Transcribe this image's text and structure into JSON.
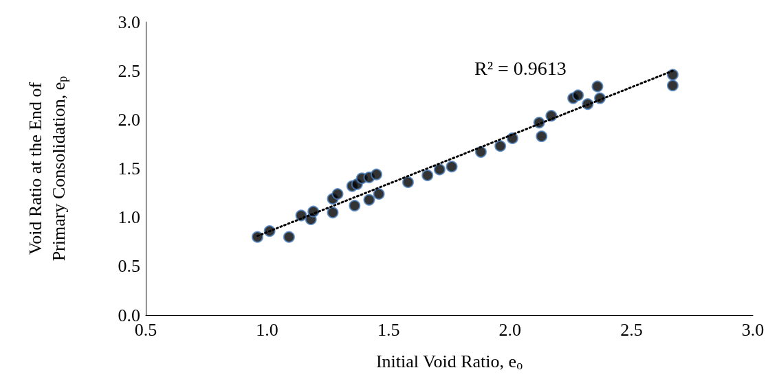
{
  "chart_data": {
    "type": "scatter",
    "xlabel": "Initial Void Ratio, e$_{o}$",
    "ylabel": "Void Ratio at the End of Primary Consolidation, e$_{p}$",
    "xlim": [
      0.5,
      3.0
    ],
    "xticks": [
      0.5,
      {
        "value": 1,
        "label": "1.0"
      },
      1.5,
      {
        "value": 2,
        "label": "2.0"
      },
      2.5,
      {
        "value": 3,
        "label": "3.0"
      }
    ],
    "ylim": [
      0.0,
      3.0
    ],
    "yticks": [
      {
        "value": 0,
        "label": "0.0"
      },
      0.5,
      {
        "value": 1,
        "label": "1.0"
      },
      1.5,
      {
        "value": 2,
        "label": "2.0"
      },
      2.5,
      {
        "value": 3,
        "label": "3.0"
      }
    ],
    "grid": false,
    "marker": "circle",
    "annotations": [
      "R² = 0.9613"
    ],
    "series": [
      {
        "color": "#000000",
        "x": [
          0.96,
          1.01,
          1.09,
          1.14,
          1.18,
          1.19,
          1.27,
          1.27,
          1.29,
          1.36,
          1.35,
          1.37,
          1.39,
          1.42,
          1.45,
          1.42,
          1.46,
          1.58,
          1.66,
          1.71,
          1.76,
          1.88,
          1.96,
          2.01,
          2.12,
          2.13,
          2.17,
          2.26,
          2.28,
          2.32,
          2.36,
          2.37,
          2.67,
          2.67
        ],
        "values": [
          0.8,
          0.86,
          0.8,
          1.02,
          0.98,
          1.06,
          1.19,
          1.05,
          1.24,
          1.12,
          1.32,
          1.34,
          1.4,
          1.41,
          1.44,
          1.18,
          1.24,
          1.36,
          1.43,
          1.49,
          1.52,
          1.67,
          1.73,
          1.81,
          1.97,
          1.83,
          2.04,
          2.22,
          2.25,
          2.16,
          2.34,
          2.22,
          2.46,
          2.35
        ]
      },
      {
        "type": "line",
        "color": "#000000",
        "line_style": "dotted",
        "marker": "none",
        "x": [
          0.96,
          2.67
        ],
        "values": [
          0.81,
          2.5
        ]
      }
    ]
  }
}
